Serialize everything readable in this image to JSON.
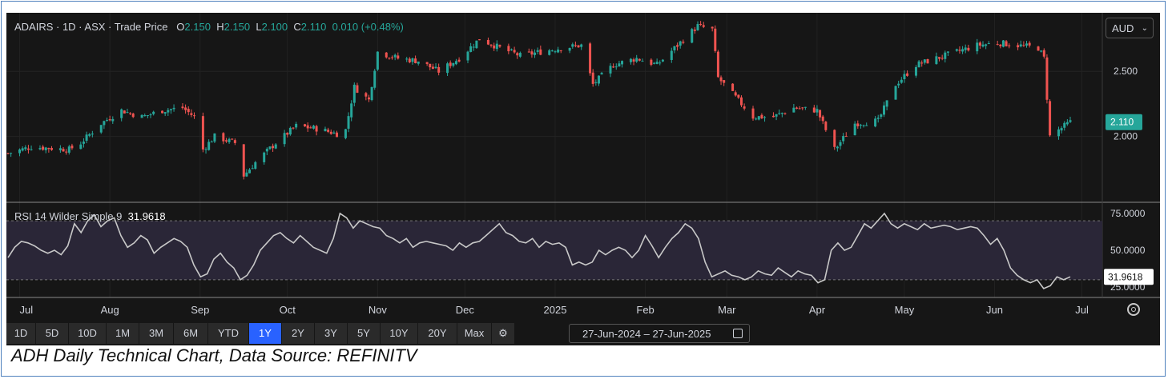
{
  "header": {
    "symbol": "ADAIRS · 1D · ASX · Trade Price",
    "o_label": "O",
    "o_value": "2.150",
    "h_label": "H",
    "h_value": "2.150",
    "l_label": "L",
    "l_value": "2.100",
    "c_label": "C",
    "c_value": "2.110",
    "change": "0.010 (+0.48%)",
    "currency": "AUD"
  },
  "rsi_header": {
    "label": "RSI 14 Wilder Simple 9",
    "value": "31.9618"
  },
  "toolbar": {
    "ranges": [
      "1D",
      "5D",
      "10D",
      "1M",
      "3M",
      "6M",
      "YTD",
      "1Y",
      "2Y",
      "3Y",
      "5Y",
      "10Y",
      "20Y",
      "Max"
    ],
    "active": "1Y",
    "date_from": "27-Jun-2024",
    "date_to": "27-Jun-2025",
    "separator": "–"
  },
  "caption": "ADH Daily Technical Chart, Data Source: REFINITV",
  "colors": {
    "up": "#26a69a",
    "down": "#ef5350",
    "rsi_line": "#c8c8c8",
    "rsi_band": "#2a2637",
    "last_price_tag": "#26a69a"
  },
  "chart_data": [
    {
      "type": "candlestick",
      "title": "ADAIRS · 1D · ASX · Trade Price",
      "x_tick_labels": [
        "Jul",
        "Aug",
        "Sep",
        "Oct",
        "Nov",
        "Dec",
        "2025",
        "Feb",
        "Mar",
        "Apr",
        "May",
        "Jun",
        "Jul"
      ],
      "y_tick_labels": [
        "2.000",
        "2.500"
      ],
      "ylim": [
        1.5,
        2.95
      ],
      "last_price_label": "2.110",
      "close_series_knots": [
        [
          "2024-06-27",
          1.87
        ],
        [
          "2024-07-05",
          1.92
        ],
        [
          "2024-07-18",
          1.9
        ],
        [
          "2024-07-22",
          1.95
        ],
        [
          "2024-07-29",
          2.1
        ],
        [
          "2024-08-05",
          2.2
        ],
        [
          "2024-08-12",
          2.15
        ],
        [
          "2024-08-19",
          2.2
        ],
        [
          "2024-08-26",
          2.22
        ],
        [
          "2024-08-30",
          2.15
        ],
        [
          "2024-09-02",
          1.9
        ],
        [
          "2024-09-06",
          2.0
        ],
        [
          "2024-09-13",
          1.95
        ],
        [
          "2024-09-16",
          1.7
        ],
        [
          "2024-09-20",
          1.8
        ],
        [
          "2024-09-27",
          1.95
        ],
        [
          "2024-10-04",
          2.08
        ],
        [
          "2024-10-11",
          2.06
        ],
        [
          "2024-10-18",
          2.02
        ],
        [
          "2024-10-21",
          2.05
        ],
        [
          "2024-10-24",
          2.38
        ],
        [
          "2024-10-29",
          2.28
        ],
        [
          "2024-11-01",
          2.65
        ],
        [
          "2024-11-08",
          2.6
        ],
        [
          "2024-11-15",
          2.58
        ],
        [
          "2024-11-22",
          2.5
        ],
        [
          "2024-11-29",
          2.6
        ],
        [
          "2024-12-06",
          2.75
        ],
        [
          "2024-12-13",
          2.68
        ],
        [
          "2024-12-20",
          2.62
        ],
        [
          "2025-01-03",
          2.68
        ],
        [
          "2025-01-10",
          2.7
        ],
        [
          "2025-01-14",
          2.4
        ],
        [
          "2025-01-21",
          2.55
        ],
        [
          "2025-01-29",
          2.6
        ],
        [
          "2025-02-05",
          2.55
        ],
        [
          "2025-02-12",
          2.7
        ],
        [
          "2025-02-19",
          2.85
        ],
        [
          "2025-02-24",
          2.82
        ],
        [
          "2025-02-26",
          2.45
        ],
        [
          "2025-03-04",
          2.3
        ],
        [
          "2025-03-10",
          2.15
        ],
        [
          "2025-03-17",
          2.15
        ],
        [
          "2025-03-24",
          2.22
        ],
        [
          "2025-04-01",
          2.2
        ],
        [
          "2025-04-03",
          2.1
        ],
        [
          "2025-04-07",
          1.9
        ],
        [
          "2025-04-14",
          2.1
        ],
        [
          "2025-04-22",
          2.12
        ],
        [
          "2025-04-28",
          2.4
        ],
        [
          "2025-05-05",
          2.55
        ],
        [
          "2025-05-12",
          2.6
        ],
        [
          "2025-05-19",
          2.65
        ],
        [
          "2025-05-26",
          2.7
        ],
        [
          "2025-06-02",
          2.72
        ],
        [
          "2025-06-09",
          2.7
        ],
        [
          "2025-06-16",
          2.68
        ],
        [
          "2025-06-18",
          2.6
        ],
        [
          "2025-06-20",
          2.0
        ],
        [
          "2025-06-23",
          2.05
        ],
        [
          "2025-06-27",
          2.11
        ]
      ]
    },
    {
      "type": "line",
      "title": "RSI 14 Wilder Simple 9",
      "y_tick_labels": [
        "75.0000",
        "50.0000",
        "25.0000"
      ],
      "ylim": [
        18,
        82
      ],
      "band": [
        30,
        70
      ],
      "last_value_label": "31.9618",
      "values": [
        45,
        52,
        56,
        55,
        53,
        50,
        48,
        50,
        47,
        53,
        68,
        62,
        70,
        74,
        66,
        70,
        72,
        60,
        52,
        55,
        60,
        57,
        48,
        52,
        55,
        58,
        56,
        52,
        40,
        32,
        34,
        44,
        48,
        42,
        38,
        30,
        33,
        40,
        50,
        55,
        60,
        62,
        58,
        55,
        60,
        56,
        52,
        50,
        48,
        58,
        75,
        72,
        65,
        70,
        68,
        66,
        65,
        60,
        58,
        55,
        58,
        52,
        55,
        56,
        55,
        54,
        53,
        50,
        55,
        52,
        55,
        56,
        60,
        64,
        68,
        62,
        60,
        56,
        55,
        58,
        52,
        56,
        54,
        55,
        52,
        40,
        42,
        40,
        42,
        50,
        47,
        50,
        52,
        50,
        45,
        50,
        60,
        53,
        45,
        52,
        58,
        62,
        68,
        65,
        58,
        42,
        32,
        34,
        36,
        33,
        32,
        30,
        32,
        36,
        34,
        33,
        38,
        35,
        32,
        36,
        34,
        33,
        28,
        30,
        50,
        55,
        50,
        52,
        60,
        68,
        65,
        70,
        75,
        68,
        65,
        68,
        66,
        64,
        68,
        65,
        66,
        67,
        66,
        64,
        65,
        66,
        65,
        60,
        54,
        58,
        50,
        38,
        33,
        30,
        28,
        30,
        24,
        26,
        32,
        30,
        32
      ]
    }
  ]
}
